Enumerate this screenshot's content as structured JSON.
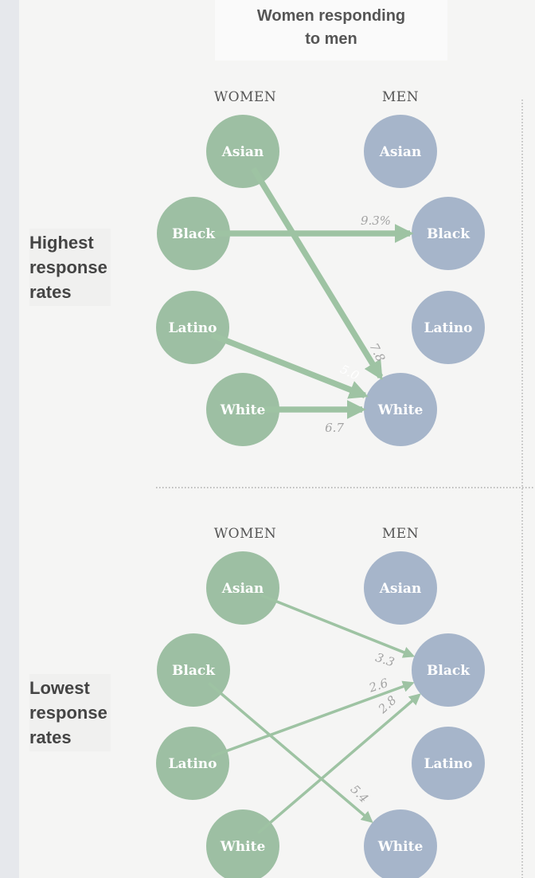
{
  "title_lines": [
    "Women responding",
    "to men"
  ],
  "colors": {
    "women_circle": "#9dbfa3",
    "men_circle": "#a6b5ca",
    "arrow": "#9ec3a3"
  },
  "panels": [
    {
      "row_label_lines": [
        "Highest",
        "response",
        "rates"
      ],
      "women_header": "WOMEN",
      "men_header": "MEN",
      "women": [
        "Asian",
        "Black",
        "Latino",
        "White"
      ],
      "men": [
        "Asian",
        "Black",
        "Latino",
        "White"
      ],
      "arrows": [
        {
          "from": "Asian",
          "to": "White",
          "label": "7.8"
        },
        {
          "from": "Black",
          "to": "Black",
          "label": "9.3%"
        },
        {
          "from": "Latino",
          "to": "White",
          "label": "5.0"
        },
        {
          "from": "White",
          "to": "White",
          "label": "6.7"
        }
      ]
    },
    {
      "row_label_lines": [
        "Lowest",
        "response",
        "rates"
      ],
      "women_header": "WOMEN",
      "men_header": "MEN",
      "women": [
        "Asian",
        "Black",
        "Latino",
        "White"
      ],
      "men": [
        "Asian",
        "Black",
        "Latino",
        "White"
      ],
      "arrows": [
        {
          "from": "Asian",
          "to": "Black",
          "label": "3.3"
        },
        {
          "from": "Latino",
          "to": "Black",
          "label": "2.6"
        },
        {
          "from": "White",
          "to": "Black",
          "label": "2.8"
        },
        {
          "from": "Black",
          "to": "White",
          "label": "5.4"
        }
      ]
    }
  ]
}
